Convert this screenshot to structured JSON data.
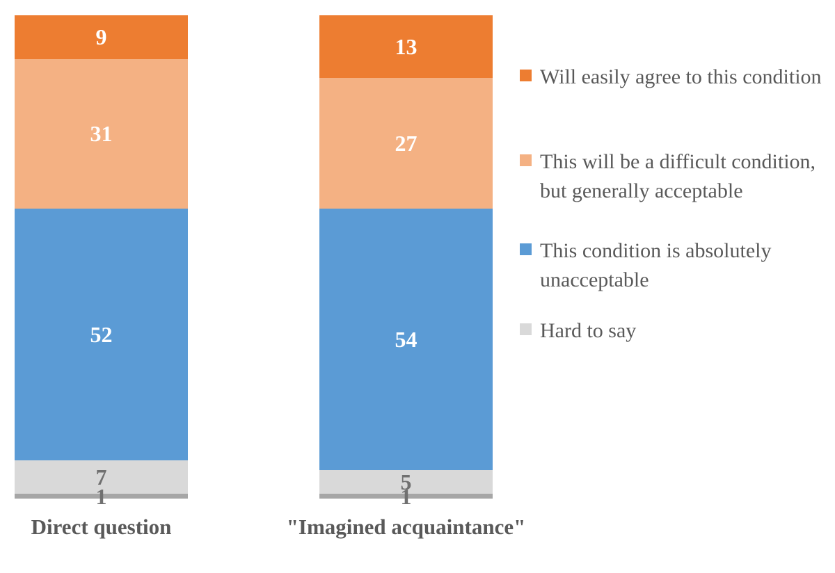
{
  "chart_data": {
    "type": "bar",
    "stacked": true,
    "orientation": "vertical-column",
    "title": "",
    "xlabel": "",
    "ylabel": "",
    "ylim": [
      0,
      100
    ],
    "axis_visible": false,
    "gridlines": false,
    "legend_position": "right",
    "value_labels": true,
    "categories": [
      "Direct question",
      "\"Imagined acquaintance\""
    ],
    "series": [
      {
        "name": "Will easily agree to this condition",
        "values": [
          9,
          13
        ],
        "color": "#ed7d31",
        "label_color": "#ffffff",
        "in_legend": true
      },
      {
        "name": "This will be a difficult condition, but generally acceptable",
        "values": [
          31,
          27
        ],
        "color": "#f4b183",
        "label_color": "#ffffff",
        "in_legend": true
      },
      {
        "name": "This condition is absolutely unacceptable",
        "values": [
          52,
          54
        ],
        "color": "#5b9bd5",
        "label_color": "#ffffff",
        "in_legend": true
      },
      {
        "name": "Hard to say",
        "values": [
          7,
          5
        ],
        "color": "#d9d9d9",
        "label_color": "#707070",
        "in_legend": true
      },
      {
        "name": "",
        "values": [
          1,
          1
        ],
        "color": "#a6a6a6",
        "label_color": "#707070",
        "in_legend": false
      }
    ],
    "colors": {
      "background": "#ffffff",
      "text": "#595959",
      "muted_value_label": "#707070"
    }
  }
}
